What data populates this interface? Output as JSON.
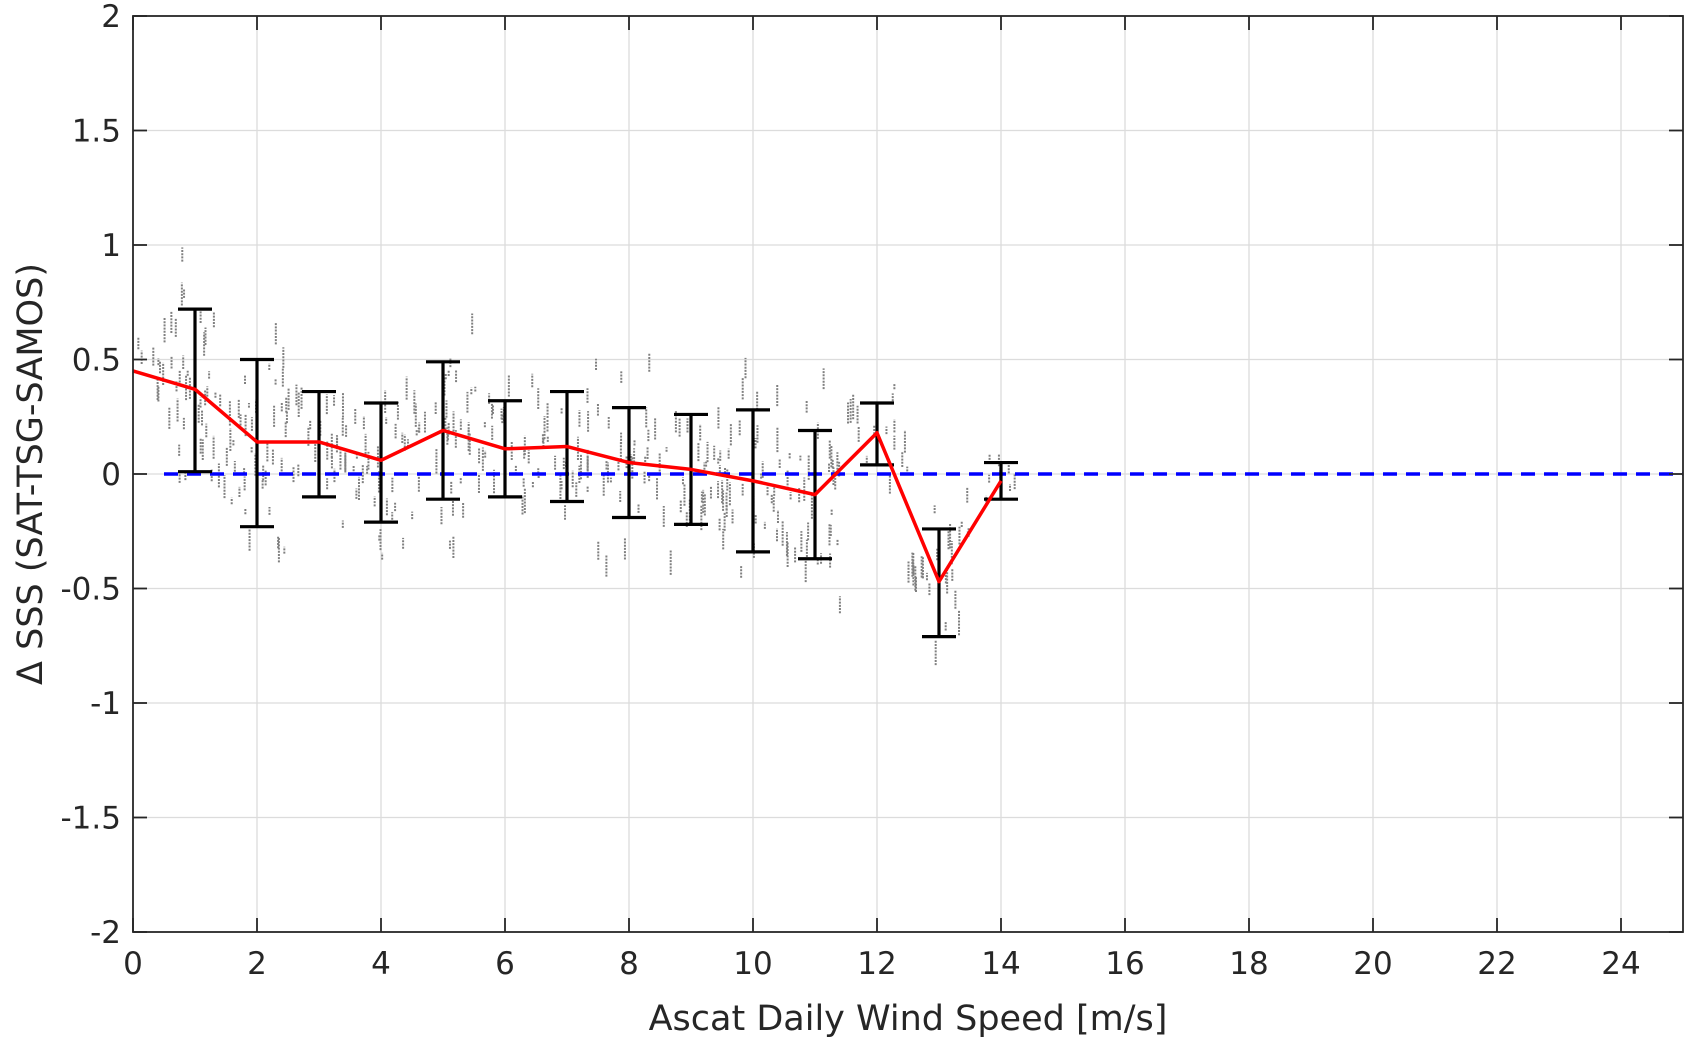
{
  "chart_data": {
    "type": "scatter",
    "title": "",
    "xlabel": "Ascat Daily Wind Speed [m/s]",
    "ylabel": "Δ SSS (SAT-TSG-SAMOS)",
    "xlim": [
      0,
      25
    ],
    "ylim": [
      -2,
      2
    ],
    "xticks": [
      0,
      2,
      4,
      6,
      8,
      10,
      12,
      14,
      16,
      18,
      20,
      22,
      24
    ],
    "yticks": [
      -2,
      -1.5,
      -1,
      -0.5,
      0,
      0.5,
      1,
      1.5,
      2
    ],
    "xtick_labels": [
      "0",
      "2",
      "4",
      "6",
      "8",
      "10",
      "12",
      "14",
      "16",
      "18",
      "20",
      "22",
      "24"
    ],
    "ytick_labels": [
      "-2",
      "-1.5",
      "-1",
      "-0.5",
      "0",
      "0.5",
      "1",
      "1.5",
      "2"
    ],
    "grid": true,
    "colors": {
      "scatter": "#808080",
      "mean_line": "#ff0000",
      "error_bars": "#000000",
      "reference_line": "#0000ff",
      "grid": "#dcdcdc",
      "axes": "#262626"
    },
    "scatter_points": {
      "note_x_range": [
        0,
        14.3
      ],
      "clusters": [
        {
          "x": [
            0.0,
            0.5
          ],
          "y_mean": 0.45,
          "y_spread": 0.08
        },
        {
          "x": [
            0.5,
            1.5
          ],
          "y_mean": 0.36,
          "y_spread": 0.32
        },
        {
          "x": [
            1.5,
            2.5
          ],
          "y_mean": 0.14,
          "y_spread": 0.34
        },
        {
          "x": [
            2.5,
            3.5
          ],
          "y_mean": 0.13,
          "y_spread": 0.22
        },
        {
          "x": [
            3.5,
            4.5
          ],
          "y_mean": 0.06,
          "y_spread": 0.25
        },
        {
          "x": [
            4.5,
            5.5
          ],
          "y_mean": 0.19,
          "y_spread": 0.3
        },
        {
          "x": [
            5.5,
            6.5
          ],
          "y_mean": 0.11,
          "y_spread": 0.21
        },
        {
          "x": [
            6.5,
            7.5
          ],
          "y_mean": 0.12,
          "y_spread": 0.24
        },
        {
          "x": [
            7.5,
            8.5
          ],
          "y_mean": 0.05,
          "y_spread": 0.24
        },
        {
          "x": [
            8.5,
            9.5
          ],
          "y_mean": 0.02,
          "y_spread": 0.24
        },
        {
          "x": [
            9.5,
            10.5
          ],
          "y_mean": -0.03,
          "y_spread": 0.31
        },
        {
          "x": [
            10.5,
            11.5
          ],
          "y_mean": -0.09,
          "y_spread": 0.28
        },
        {
          "x": [
            11.5,
            12.5
          ],
          "y_mean": 0.18,
          "y_spread": 0.14
        },
        {
          "x": [
            12.5,
            13.5
          ],
          "y_mean": -0.48,
          "y_spread": 0.24
        },
        {
          "x": [
            13.5,
            14.3
          ],
          "y_mean": -0.03,
          "y_spread": 0.08
        }
      ]
    },
    "series": [
      {
        "type": "errorbar",
        "x": [
          1,
          2,
          3,
          4,
          5,
          6,
          7,
          8,
          9,
          10,
          11,
          12,
          13,
          14
        ],
        "y": [
          0.37,
          0.14,
          0.14,
          0.06,
          0.19,
          0.11,
          0.12,
          0.05,
          0.02,
          -0.03,
          -0.09,
          0.18,
          -0.47,
          -0.03
        ],
        "y_low": [
          0.01,
          -0.23,
          -0.1,
          -0.21,
          -0.11,
          -0.1,
          -0.12,
          -0.19,
          -0.22,
          -0.34,
          -0.37,
          0.04,
          -0.71,
          -0.11
        ],
        "y_high": [
          0.72,
          0.5,
          0.36,
          0.31,
          0.49,
          0.32,
          0.36,
          0.29,
          0.26,
          0.28,
          0.19,
          0.31,
          -0.24,
          0.05
        ]
      },
      {
        "type": "line",
        "x": [
          0,
          1,
          2,
          3,
          4,
          5,
          6,
          7,
          8,
          9,
          10,
          11,
          12,
          13,
          14
        ],
        "y": [
          0.45,
          0.37,
          0.14,
          0.14,
          0.06,
          0.19,
          0.11,
          0.12,
          0.05,
          0.02,
          -0.03,
          -0.09,
          0.18,
          -0.47,
          -0.03
        ]
      },
      {
        "type": "reference_line",
        "y": 0,
        "x_range": [
          0.5,
          25
        ],
        "style": "dashed"
      }
    ]
  }
}
